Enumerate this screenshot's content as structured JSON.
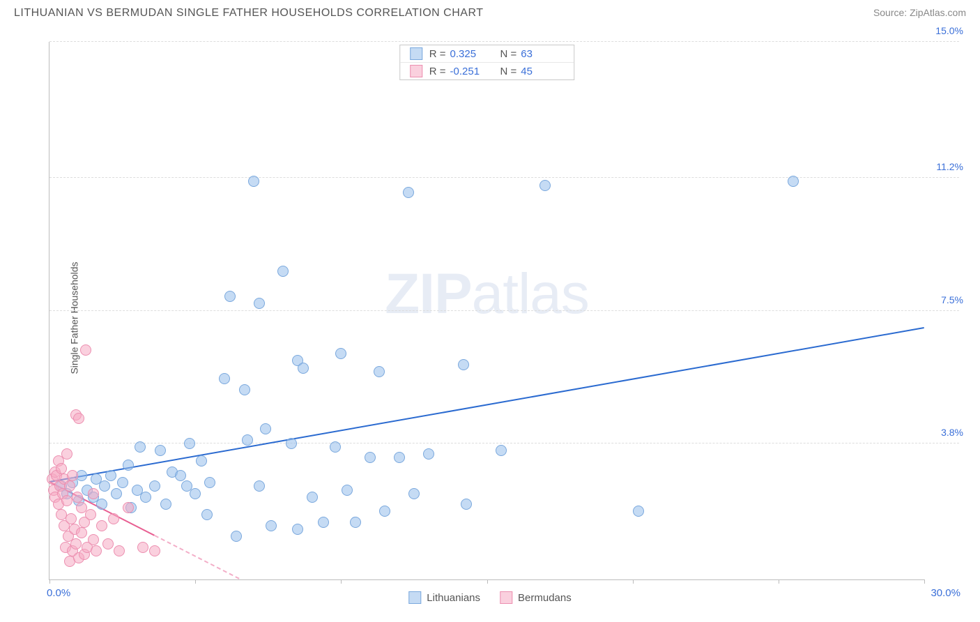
{
  "title": "LITHUANIAN VS BERMUDAN SINGLE FATHER HOUSEHOLDS CORRELATION CHART",
  "source_label": "Source: ",
  "source_name": "ZipAtlas.com",
  "ylabel": "Single Father Households",
  "watermark_strong": "ZIP",
  "watermark_light": "atlas",
  "chart": {
    "type": "scatter",
    "xlim": [
      0,
      30
    ],
    "ylim": [
      0,
      15
    ],
    "x_min_label": "0.0%",
    "x_max_label": "30.0%",
    "xticks": [
      0,
      5,
      10,
      15,
      20,
      25,
      30
    ],
    "yticks": [
      {
        "v": 3.8,
        "label": "3.8%"
      },
      {
        "v": 7.5,
        "label": "7.5%"
      },
      {
        "v": 11.2,
        "label": "11.2%"
      },
      {
        "v": 15.0,
        "label": "15.0%"
      }
    ],
    "ytick_color": "#3a6fd8",
    "grid_color": "#dddddd",
    "axis_color": "#bbbbbb",
    "background_color": "#ffffff"
  },
  "series": [
    {
      "name": "Lithuanians",
      "fill": "rgba(150,190,235,0.55)",
      "stroke": "#7aa8dd",
      "line_color": "#2a6ad0",
      "marker_radius": 8,
      "R_label": "R =",
      "R_value": "0.325",
      "N_label": "N =",
      "N_value": "63",
      "stat_color": "#3a6fd8",
      "trend": {
        "x1": 0,
        "y1": 2.7,
        "x2": 30,
        "y2": 7.0,
        "dash": false
      },
      "points": [
        [
          0.4,
          2.6
        ],
        [
          0.6,
          2.4
        ],
        [
          0.8,
          2.7
        ],
        [
          1.0,
          2.2
        ],
        [
          1.1,
          2.9
        ],
        [
          1.3,
          2.5
        ],
        [
          1.5,
          2.3
        ],
        [
          1.6,
          2.8
        ],
        [
          1.8,
          2.1
        ],
        [
          1.9,
          2.6
        ],
        [
          2.1,
          2.9
        ],
        [
          2.3,
          2.4
        ],
        [
          2.5,
          2.7
        ],
        [
          2.7,
          3.2
        ],
        [
          2.8,
          2.0
        ],
        [
          3.0,
          2.5
        ],
        [
          3.1,
          3.7
        ],
        [
          3.3,
          2.3
        ],
        [
          3.6,
          2.6
        ],
        [
          3.8,
          3.6
        ],
        [
          4.0,
          2.1
        ],
        [
          4.2,
          3.0
        ],
        [
          4.5,
          2.9
        ],
        [
          4.7,
          2.6
        ],
        [
          4.8,
          3.8
        ],
        [
          5.0,
          2.4
        ],
        [
          5.2,
          3.3
        ],
        [
          5.4,
          1.8
        ],
        [
          5.5,
          2.7
        ],
        [
          6.0,
          5.6
        ],
        [
          6.2,
          7.9
        ],
        [
          6.4,
          1.2
        ],
        [
          6.7,
          5.3
        ],
        [
          6.8,
          3.9
        ],
        [
          7.0,
          11.1
        ],
        [
          7.2,
          2.6
        ],
        [
          7.2,
          7.7
        ],
        [
          7.4,
          4.2
        ],
        [
          7.6,
          1.5
        ],
        [
          8.0,
          8.6
        ],
        [
          8.3,
          3.8
        ],
        [
          8.5,
          6.1
        ],
        [
          8.5,
          1.4
        ],
        [
          8.7,
          5.9
        ],
        [
          9.0,
          2.3
        ],
        [
          9.4,
          1.6
        ],
        [
          9.8,
          3.7
        ],
        [
          10.0,
          6.3
        ],
        [
          10.2,
          2.5
        ],
        [
          10.5,
          1.6
        ],
        [
          11.0,
          3.4
        ],
        [
          11.3,
          5.8
        ],
        [
          11.5,
          1.9
        ],
        [
          12.0,
          3.4
        ],
        [
          12.3,
          10.8
        ],
        [
          12.5,
          2.4
        ],
        [
          13.0,
          3.5
        ],
        [
          14.2,
          6.0
        ],
        [
          14.3,
          2.1
        ],
        [
          15.5,
          3.6
        ],
        [
          17.0,
          11.0
        ],
        [
          20.2,
          1.9
        ],
        [
          25.5,
          11.1
        ]
      ]
    },
    {
      "name": "Bermudans",
      "fill": "rgba(245,170,195,0.55)",
      "stroke": "#ec8fb0",
      "line_color": "#e85f92",
      "marker_radius": 8,
      "R_label": "R =",
      "R_value": "-0.251",
      "N_label": "N =",
      "N_value": "45",
      "stat_color": "#3a6fd8",
      "trend": {
        "x1": 0,
        "y1": 2.7,
        "x2": 6.5,
        "y2": 0.0,
        "dash": true,
        "solid_until_x": 3.6
      },
      "points": [
        [
          0.1,
          2.8
        ],
        [
          0.15,
          2.5
        ],
        [
          0.2,
          3.0
        ],
        [
          0.2,
          2.3
        ],
        [
          0.25,
          2.9
        ],
        [
          0.3,
          2.1
        ],
        [
          0.3,
          3.3
        ],
        [
          0.35,
          2.6
        ],
        [
          0.4,
          1.8
        ],
        [
          0.4,
          3.1
        ],
        [
          0.45,
          2.4
        ],
        [
          0.5,
          1.5
        ],
        [
          0.5,
          2.8
        ],
        [
          0.55,
          0.9
        ],
        [
          0.6,
          2.2
        ],
        [
          0.6,
          3.5
        ],
        [
          0.65,
          1.2
        ],
        [
          0.7,
          2.6
        ],
        [
          0.7,
          0.5
        ],
        [
          0.75,
          1.7
        ],
        [
          0.8,
          0.8
        ],
        [
          0.8,
          2.9
        ],
        [
          0.85,
          1.4
        ],
        [
          0.9,
          4.6
        ],
        [
          0.9,
          1.0
        ],
        [
          0.95,
          2.3
        ],
        [
          1.0,
          4.5
        ],
        [
          1.0,
          0.6
        ],
        [
          1.1,
          1.3
        ],
        [
          1.1,
          2.0
        ],
        [
          1.2,
          0.7
        ],
        [
          1.2,
          1.6
        ],
        [
          1.25,
          6.4
        ],
        [
          1.3,
          0.9
        ],
        [
          1.4,
          1.8
        ],
        [
          1.5,
          1.1
        ],
        [
          1.5,
          2.4
        ],
        [
          1.6,
          0.8
        ],
        [
          1.8,
          1.5
        ],
        [
          2.0,
          1.0
        ],
        [
          2.2,
          1.7
        ],
        [
          2.4,
          0.8
        ],
        [
          2.7,
          2.0
        ],
        [
          3.2,
          0.9
        ],
        [
          3.6,
          0.8
        ]
      ]
    }
  ]
}
